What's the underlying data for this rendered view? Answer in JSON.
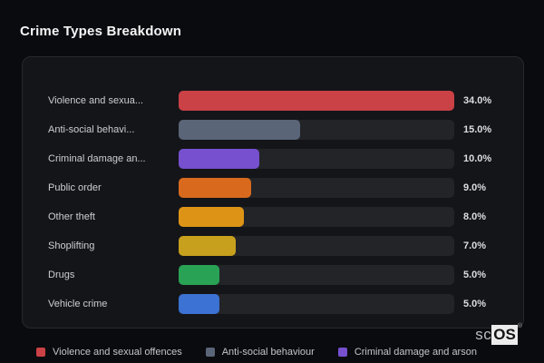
{
  "page": {
    "title": "Crime Types Breakdown"
  },
  "colors": {
    "background": "#0a0b0e",
    "card_background": "#141519",
    "card_border": "#27282d",
    "track": "#232428",
    "title_text": "#f5f5f7",
    "label_text": "#cdced2",
    "value_text": "#dcdde0",
    "legend_text": "#c3c5c9"
  },
  "chart_data": {
    "type": "bar",
    "orientation": "horizontal",
    "title": "Crime Types Breakdown",
    "xlabel": "",
    "ylabel": "",
    "max_value": 34,
    "grid": false,
    "legend_position": "bottom",
    "categories": [
      "Violence and sexual offences",
      "Anti-social behaviour",
      "Criminal damage and arson",
      "Public order",
      "Other theft",
      "Shoplifting",
      "Drugs",
      "Vehicle crime"
    ],
    "display_labels": [
      "Violence and sexua...",
      "Anti-social behavi...",
      "Criminal damage an...",
      "Public order",
      "Other theft",
      "Shoplifting",
      "Drugs",
      "Vehicle crime"
    ],
    "values": [
      34.0,
      15.0,
      10.0,
      9.0,
      8.0,
      7.0,
      5.0,
      5.0
    ],
    "value_labels": [
      "34.0%",
      "15.0%",
      "10.0%",
      "9.0%",
      "8.0%",
      "7.0%",
      "5.0%",
      "5.0%"
    ],
    "bar_colors": [
      "#ca4146",
      "#5a6578",
      "#7650ce",
      "#d96a1d",
      "#dd9416",
      "#c7a01d",
      "#2aa255",
      "#3b72d3"
    ],
    "legend": [
      {
        "label": "Violence and sexual offences",
        "color": "#ca4146"
      },
      {
        "label": "Anti-social behaviour",
        "color": "#5a6578"
      },
      {
        "label": "Criminal damage and arson",
        "color": "#7650ce"
      }
    ]
  },
  "logo": {
    "prefix": "sc",
    "suffix": "OS",
    "registered": "®"
  }
}
